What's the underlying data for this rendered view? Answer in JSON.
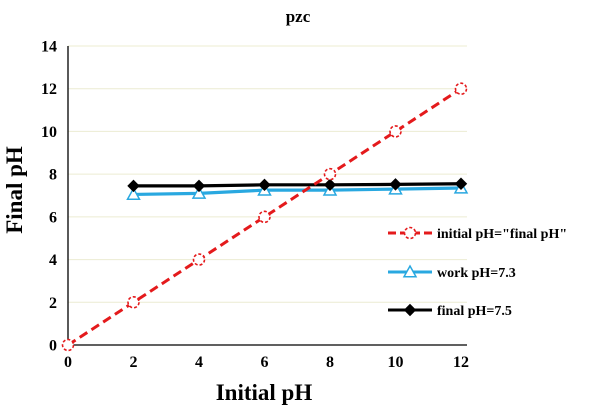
{
  "chart_data": {
    "type": "line",
    "title": "pzc",
    "xlabel": "Initial pH",
    "ylabel": "Final pH",
    "xlim": [
      0,
      12
    ],
    "ylim": [
      0,
      14
    ],
    "xticks": [
      "0",
      "2",
      "4",
      "6",
      "8",
      "10",
      "12"
    ],
    "yticks": [
      "0",
      "2",
      "4",
      "6",
      "8",
      "10",
      "12",
      "14"
    ],
    "grid": "horizontal",
    "legend_position": "right",
    "series": [
      {
        "name": "initial pH=\"final pH\"",
        "color": "#e41a1c",
        "line_style": "dashed",
        "marker": "open-circle",
        "x": [
          0,
          2,
          4,
          6,
          8,
          10,
          12
        ],
        "y": [
          0,
          2,
          4,
          6,
          8,
          10,
          12
        ]
      },
      {
        "name": "work pH=7.3",
        "color": "#29a8e0",
        "line_style": "solid",
        "marker": "open-triangle",
        "x": [
          2,
          4,
          6,
          8,
          10,
          12
        ],
        "y": [
          7.05,
          7.1,
          7.25,
          7.25,
          7.3,
          7.35
        ]
      },
      {
        "name": "final pH=7.5",
        "color": "#000000",
        "line_style": "solid",
        "marker": "filled-diamond",
        "x": [
          2,
          4,
          6,
          8,
          10,
          12
        ],
        "y": [
          7.45,
          7.45,
          7.5,
          7.5,
          7.52,
          7.55
        ]
      }
    ]
  }
}
